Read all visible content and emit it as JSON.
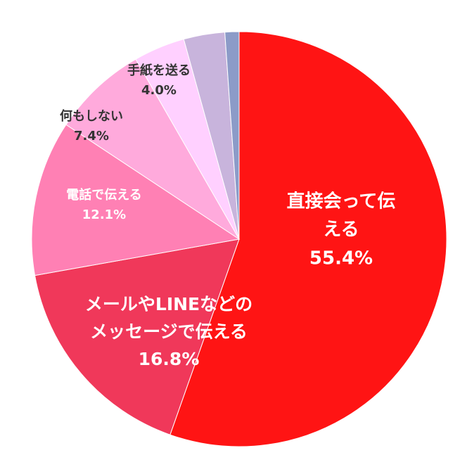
{
  "chart_data": {
    "type": "pie",
    "categories": [
      "直接会って伝える",
      "メールやLINEなどの\nメッセージで伝える",
      "電話で伝える",
      "何もしない",
      "手紙を送る",
      null,
      null
    ],
    "values": [
      55.4,
      16.8,
      12.1,
      7.4,
      4.0,
      3.2,
      1.1
    ],
    "value_labels": [
      "55.4%",
      "16.8%",
      "12.1%",
      "7.4%",
      "4.0%",
      null,
      null
    ],
    "colors": [
      "#ff1414",
      "#f0385a",
      "#ff80b4",
      "#ffaadc",
      "#ffd0ff",
      "#c8b4dc",
      "#8c9bc8"
    ]
  }
}
